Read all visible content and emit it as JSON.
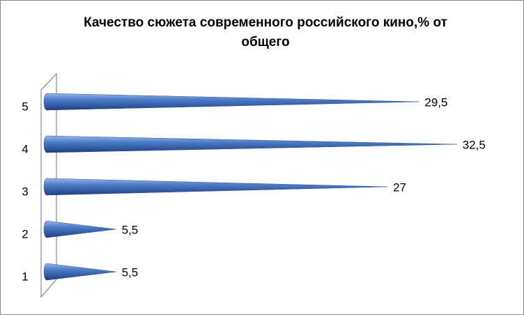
{
  "chart_data": {
    "type": "cone-bar",
    "title": "Качество сюжета современного российского кино,% от общего",
    "categories": [
      "1",
      "2",
      "3",
      "4",
      "5"
    ],
    "values": [
      5.5,
      5.5,
      27,
      32.5,
      29.5
    ],
    "value_labels": [
      "5,5",
      "5,5",
      "27",
      "32,5",
      "29,5"
    ],
    "color": "#3f6cb8",
    "xlim": [
      0,
      35
    ]
  }
}
